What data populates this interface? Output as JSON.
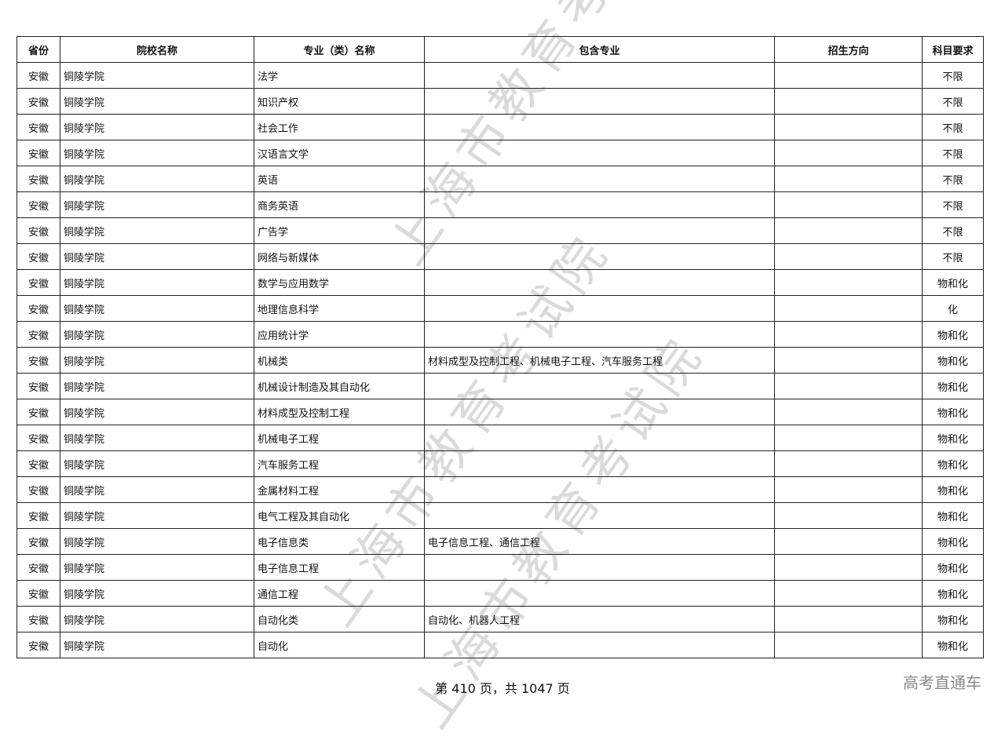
{
  "headers": [
    "省份",
    "院校名称",
    "专业（类）名称",
    "包含专业",
    "招生方向",
    "科目要求"
  ],
  "rows": [
    [
      "安徽",
      "铜陵学院",
      "法学",
      "",
      "",
      "不限"
    ],
    [
      "安徽",
      "铜陵学院",
      "知识产权",
      "",
      "",
      "不限"
    ],
    [
      "安徽",
      "铜陵学院",
      "社会工作",
      "",
      "",
      "不限"
    ],
    [
      "安徽",
      "铜陵学院",
      "汉语言文学",
      "",
      "",
      "不限"
    ],
    [
      "安徽",
      "铜陵学院",
      "英语",
      "",
      "",
      "不限"
    ],
    [
      "安徽",
      "铜陵学院",
      "商务英语",
      "",
      "",
      "不限"
    ],
    [
      "安徽",
      "铜陵学院",
      "广告学",
      "",
      "",
      "不限"
    ],
    [
      "安徽",
      "铜陵学院",
      "网络与新媒体",
      "",
      "",
      "不限"
    ],
    [
      "安徽",
      "铜陵学院",
      "数学与应用数学",
      "",
      "",
      "物和化"
    ],
    [
      "安徽",
      "铜陵学院",
      "地理信息科学",
      "",
      "",
      "化"
    ],
    [
      "安徽",
      "铜陵学院",
      "应用统计学",
      "",
      "",
      "物和化"
    ],
    [
      "安徽",
      "铜陵学院",
      "机械类",
      "材料成型及控制工程、机械电子工程、汽车服务工程",
      "",
      "物和化"
    ],
    [
      "安徽",
      "铜陵学院",
      "机械设计制造及其自动化",
      "",
      "",
      "物和化"
    ],
    [
      "安徽",
      "铜陵学院",
      "材料成型及控制工程",
      "",
      "",
      "物和化"
    ],
    [
      "安徽",
      "铜陵学院",
      "机械电子工程",
      "",
      "",
      "物和化"
    ],
    [
      "安徽",
      "铜陵学院",
      "汽车服务工程",
      "",
      "",
      "物和化"
    ],
    [
      "安徽",
      "铜陵学院",
      "金属材料工程",
      "",
      "",
      "物和化"
    ],
    [
      "安徽",
      "铜陵学院",
      "电气工程及其自动化",
      "",
      "",
      "物和化"
    ],
    [
      "安徽",
      "铜陵学院",
      "电子信息类",
      "电子信息工程、通信工程",
      "",
      "物和化"
    ],
    [
      "安徽",
      "铜陵学院",
      "电子信息工程",
      "",
      "",
      "物和化"
    ],
    [
      "安徽",
      "铜陵学院",
      "通信工程",
      "",
      "",
      "物和化"
    ],
    [
      "安徽",
      "铜陵学院",
      "自动化类",
      "自动化、机器人工程",
      "",
      "物和化"
    ],
    [
      "安徽",
      "铜陵学院",
      "自动化",
      "",
      "",
      "物和化"
    ]
  ],
  "watermark": "上海市教育考试院",
  "footer": "第 410 页，共 1047 页",
  "corner_label": "高考直通车"
}
